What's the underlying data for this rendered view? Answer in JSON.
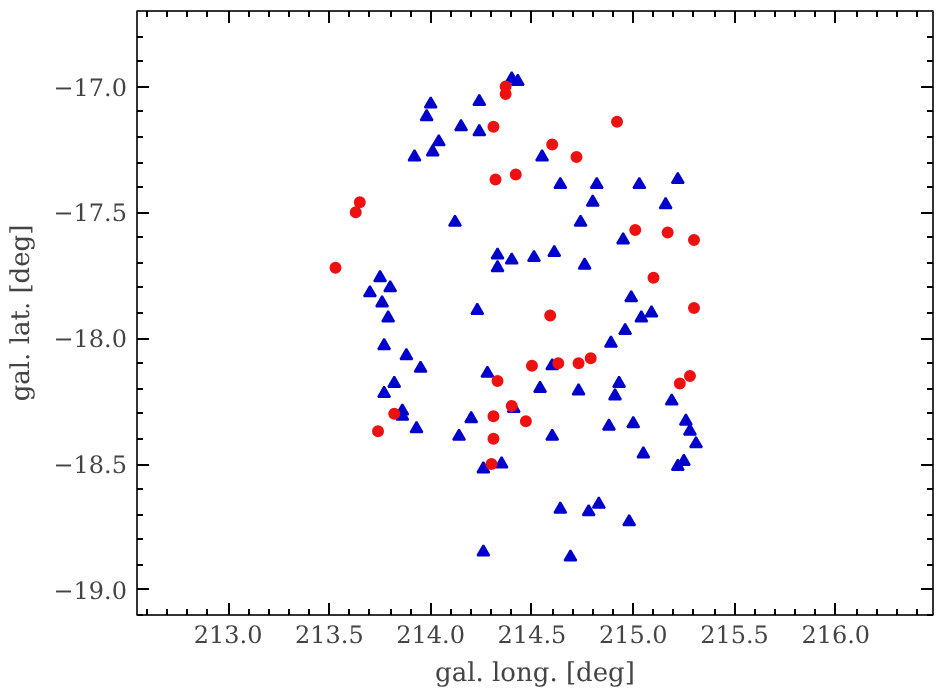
{
  "chart_data": {
    "type": "scatter",
    "xlabel": "gal. long. [deg]",
    "ylabel": "gal. lat. [deg]",
    "xlim": [
      212.55,
      216.48
    ],
    "ylim": [
      -19.1,
      -16.7
    ],
    "xticks": [
      {
        "value": 213.0,
        "label": "213.0"
      },
      213.5,
      {
        "value": 214.0,
        "label": "214.0"
      },
      214.5,
      {
        "value": 215.0,
        "label": "215.0"
      },
      215.5,
      {
        "value": 216.0,
        "label": "216.0"
      }
    ],
    "yticks": [
      {
        "value": -17.0,
        "label": "−17.0"
      },
      {
        "value": -17.5,
        "label": "−17.5"
      },
      {
        "value": -18.0,
        "label": "−18.0"
      },
      {
        "value": -18.5,
        "label": "−18.5"
      },
      {
        "value": -19.0,
        "label": "−19.0"
      }
    ],
    "grid": false,
    "series": [
      {
        "color": "#0000cc",
        "marker": "triangle",
        "x": [
          214.4,
          214.43,
          214.0,
          214.24,
          213.98,
          214.15,
          214.24,
          214.04,
          214.01,
          213.92,
          214.55,
          214.64,
          214.82,
          215.03,
          215.22,
          214.8,
          215.16,
          214.12,
          214.74,
          214.95,
          214.33,
          214.4,
          214.33,
          214.51,
          214.61,
          214.76,
          213.75,
          213.8,
          213.7,
          213.76,
          213.79,
          214.23,
          214.99,
          215.04,
          215.09,
          214.96,
          214.89,
          213.77,
          213.88,
          213.95,
          214.28,
          214.54,
          214.6,
          214.73,
          214.93,
          214.91,
          213.82,
          213.77,
          213.86,
          213.86,
          213.93,
          214.14,
          214.2,
          214.41,
          214.6,
          214.88,
          215.0,
          215.05,
          215.19,
          215.26,
          215.28,
          215.31,
          215.22,
          215.25,
          214.26,
          214.35,
          214.64,
          214.78,
          214.83,
          214.98,
          214.26,
          214.69
        ],
        "values": [
          -16.97,
          -16.98,
          -17.07,
          -17.06,
          -17.12,
          -17.16,
          -17.18,
          -17.22,
          -17.26,
          -17.28,
          -17.28,
          -17.39,
          -17.39,
          -17.39,
          -17.37,
          -17.46,
          -17.47,
          -17.54,
          -17.54,
          -17.61,
          -17.67,
          -17.69,
          -17.72,
          -17.68,
          -17.66,
          -17.71,
          -17.76,
          -17.8,
          -17.82,
          -17.86,
          -17.92,
          -17.89,
          -17.84,
          -17.92,
          -17.9,
          -17.97,
          -18.02,
          -18.03,
          -18.07,
          -18.12,
          -18.14,
          -18.2,
          -18.11,
          -18.21,
          -18.18,
          -18.23,
          -18.18,
          -18.22,
          -18.29,
          -18.31,
          -18.36,
          -18.39,
          -18.32,
          -18.28,
          -18.39,
          -18.35,
          -18.34,
          -18.46,
          -18.25,
          -18.33,
          -18.37,
          -18.42,
          -18.51,
          -18.49,
          -18.52,
          -18.5,
          -18.68,
          -18.69,
          -18.66,
          -18.73,
          -18.85,
          -18.87
        ]
      },
      {
        "color": "#ee1111",
        "marker": "circle",
        "x": [
          214.37,
          214.37,
          214.31,
          214.92,
          214.6,
          214.72,
          214.32,
          214.42,
          213.65,
          213.63,
          213.53,
          215.01,
          215.17,
          215.3,
          215.1,
          215.3,
          214.59,
          214.5,
          214.63,
          214.73,
          214.79,
          214.33,
          215.23,
          215.28,
          213.74,
          213.82,
          214.31,
          214.4,
          214.47,
          214.31,
          214.3
        ],
        "values": [
          -17.0,
          -17.03,
          -17.16,
          -17.14,
          -17.23,
          -17.28,
          -17.37,
          -17.35,
          -17.46,
          -17.5,
          -17.72,
          -17.57,
          -17.58,
          -17.61,
          -17.76,
          -17.88,
          -17.91,
          -18.11,
          -18.1,
          -18.1,
          -18.08,
          -18.17,
          -18.18,
          -18.15,
          -18.37,
          -18.3,
          -18.31,
          -18.27,
          -18.33,
          -18.4,
          -18.5
        ]
      }
    ]
  }
}
